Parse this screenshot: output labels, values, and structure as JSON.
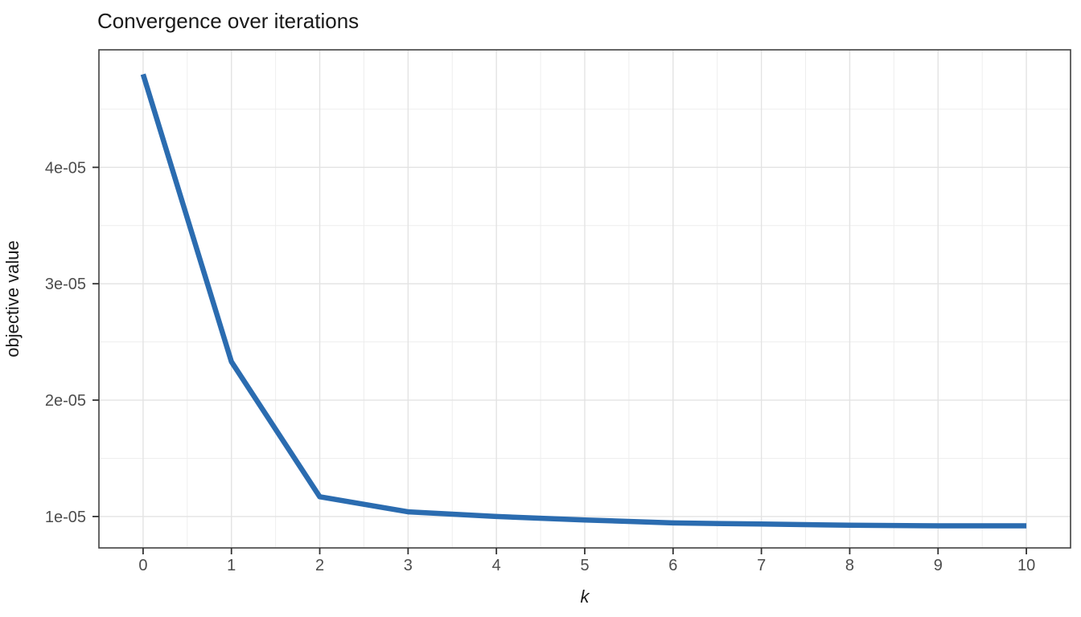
{
  "chart_data": {
    "type": "line",
    "title": "Convergence over iterations",
    "xlabel": "k",
    "ylabel": "objective value",
    "x": [
      0,
      1,
      2,
      3,
      4,
      5,
      6,
      7,
      8,
      9,
      10
    ],
    "series": [
      {
        "name": "objective value",
        "values": [
          4.8e-05,
          2.33e-05,
          1.17e-05,
          1.04e-05,
          1e-05,
          9.7e-06,
          9.45e-06,
          9.35e-06,
          9.25e-06,
          9.2e-06,
          9.2e-06
        ]
      }
    ],
    "xlim": [
      -0.5,
      10.5
    ],
    "ylim": [
      7.3e-06,
      5.01e-05
    ],
    "x_ticks": {
      "values": [
        0,
        1,
        2,
        3,
        4,
        5,
        6,
        7,
        8,
        9,
        10
      ],
      "labels": [
        "0",
        "1",
        "2",
        "3",
        "4",
        "5",
        "6",
        "7",
        "8",
        "9",
        "10"
      ]
    },
    "y_ticks": {
      "values": [
        1e-05,
        2e-05,
        3e-05,
        4e-05
      ],
      "labels": [
        "1e-05",
        "2e-05",
        "3e-05",
        "4e-05"
      ]
    },
    "x_minor": [
      0.5,
      1.5,
      2.5,
      3.5,
      4.5,
      5.5,
      6.5,
      7.5,
      8.5,
      9.5
    ],
    "y_minor": [
      1.5e-05,
      2.5e-05,
      3.5e-05,
      4.5e-05
    ],
    "grid": "major+minor",
    "legend": "none",
    "line_width": 6.5,
    "tick_length": 8,
    "colors": {
      "line": "#2b6cb0",
      "panel_border": "#404040",
      "grid_major": "#e3e3e3",
      "grid_minor": "#eeeeee",
      "tick_mark": "#333333",
      "tick_label": "#4d4d4d",
      "text": "#1a1a1a",
      "background": "#ffffff"
    }
  }
}
